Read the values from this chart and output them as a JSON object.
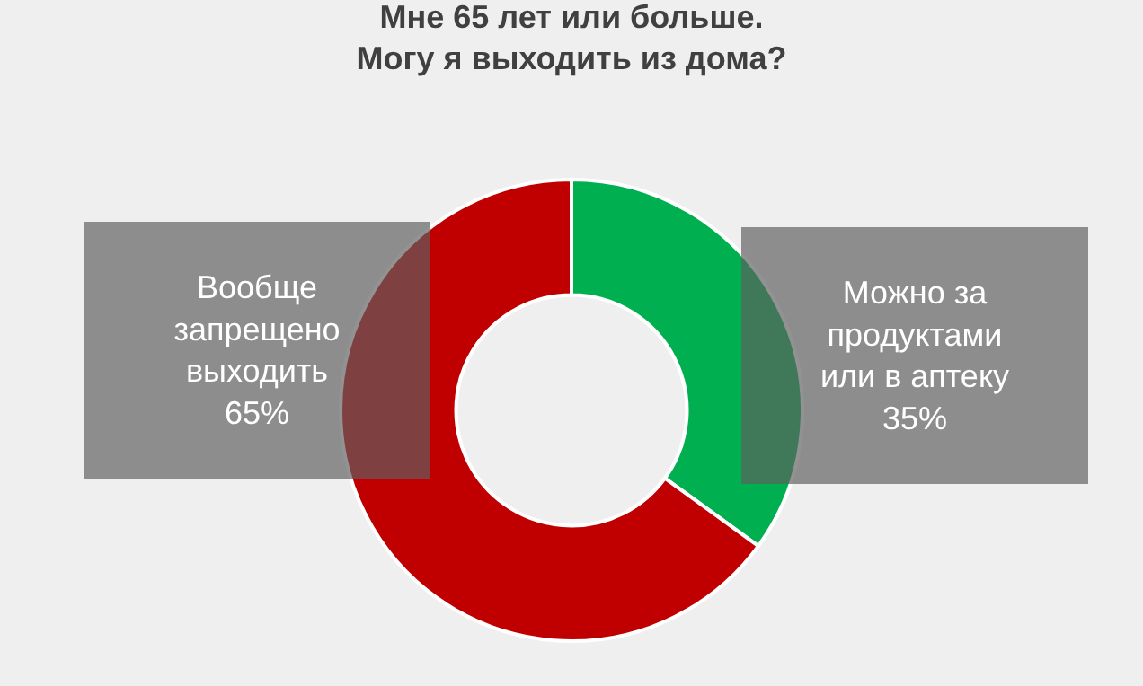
{
  "chart_data": {
    "type": "donut",
    "title": "Мне 65 лет или больше.\nМогу я выходить из дома?",
    "categories": [
      "Можно за продуктами или в аптеку",
      "Вообще запрещено выходить"
    ],
    "values": [
      35,
      65
    ],
    "colors": [
      "#00b050",
      "#c00000"
    ],
    "value_labels": [
      "35%",
      "65%"
    ],
    "legend": false
  }
}
